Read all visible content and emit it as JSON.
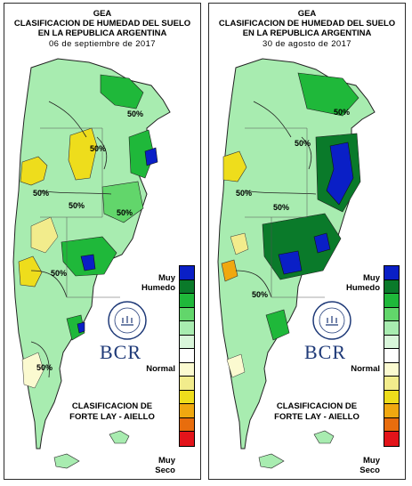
{
  "panels": [
    {
      "org": "GEA",
      "title_line1": "CLASIFICACION DE HUMEDAD DEL SUELO",
      "title_line2": "EN LA REPUBLICA ARGENTINA",
      "date": "06 de septiembre de 2017",
      "contour_labels": [
        "50%",
        "50%",
        "50%",
        "50%",
        "50%",
        "50%",
        "50%"
      ],
      "legend_top": "Muy",
      "legend_top2": "Humedo",
      "legend_mid": "Normal",
      "legend_bottom": "Muy",
      "legend_bottom2": "Seco",
      "brand": "BCR",
      "seal_text": "BOLSA DE COMERCIO DE ROSARIO",
      "method_line1": "CLASIFICACION DE",
      "method_line2": "FORTE LAY - AIELLO"
    },
    {
      "org": "GEA",
      "title_line1": "CLASIFICACION DE HUMEDAD DEL SUELO",
      "title_line2": "EN LA REPUBLICA ARGENTINA",
      "date": "30 de agosto de 2017",
      "contour_labels": [
        "50%",
        "50%",
        "50%",
        "50%",
        "50%"
      ],
      "legend_top": "Muy",
      "legend_top2": "Humedo",
      "legend_mid": "Normal",
      "legend_bottom": "Muy",
      "legend_bottom2": "Seco",
      "brand": "BCR",
      "seal_text": "BOLSA DE COMERCIO DE ROSARIO",
      "method_line1": "CLASIFICACION DE",
      "method_line2": "FORTE LAY - AIELLO"
    }
  ],
  "colors": {
    "scale": [
      "#0a1fc6",
      "#0a7a2a",
      "#1fb83a",
      "#62d66b",
      "#a8ecb0",
      "#d9f6da",
      "#ffffff",
      "#fbfad0",
      "#f2ec8c",
      "#eedd1c",
      "#f0a810",
      "#e86d0d",
      "#e3141a"
    ],
    "brand": "#1f3a78"
  }
}
